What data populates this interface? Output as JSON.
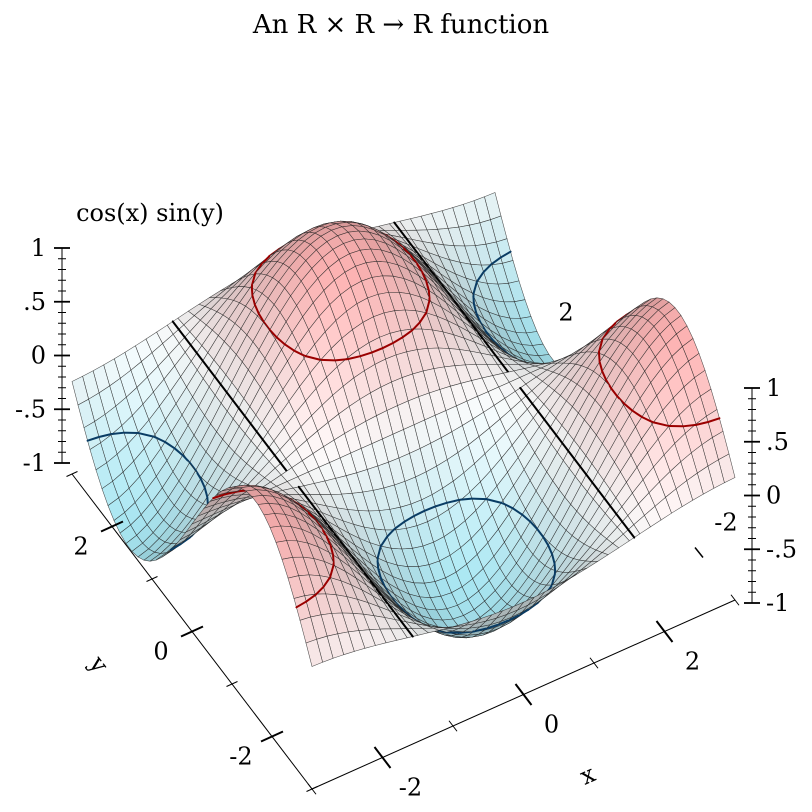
{
  "chart_data": {
    "type": "surface",
    "title": "An R × R → R function",
    "xlabel": "x",
    "ylabel": "y",
    "zlabel": "cos(x) sin(y)",
    "x_range": [
      -3,
      3
    ],
    "y_range": [
      -3,
      3
    ],
    "z_range": [
      -1,
      1
    ],
    "samples": 41,
    "x_ticks": [
      {
        "value": -2,
        "label": "-2"
      },
      {
        "value": 0,
        "label": "0"
      },
      {
        "value": 2,
        "label": "2"
      }
    ],
    "y_ticks": [
      {
        "value": -2,
        "label": "-2"
      },
      {
        "value": 0,
        "label": "0"
      },
      {
        "value": 2,
        "label": "2"
      }
    ],
    "y_ticks_far": [
      {
        "value": -2,
        "label": "-2"
      },
      {
        "value": 2,
        "label": "2"
      }
    ],
    "z_ticks": [
      {
        "value": -1,
        "label": "-1"
      },
      {
        "value": -0.5,
        "label": "-.5"
      },
      {
        "value": 0,
        "label": "0"
      },
      {
        "value": 0.5,
        "label": ".5"
      },
      {
        "value": 1,
        "label": "1"
      }
    ],
    "contour_levels": [
      -0.5,
      0,
      0.5
    ],
    "contour_colors": [
      "#0a3c64",
      "#000000",
      "#9a0000"
    ],
    "colors": {
      "positive": "#ffb4b4",
      "negative": "#aae8f4",
      "zero": "#ffffff",
      "mesh": "#222222"
    }
  }
}
